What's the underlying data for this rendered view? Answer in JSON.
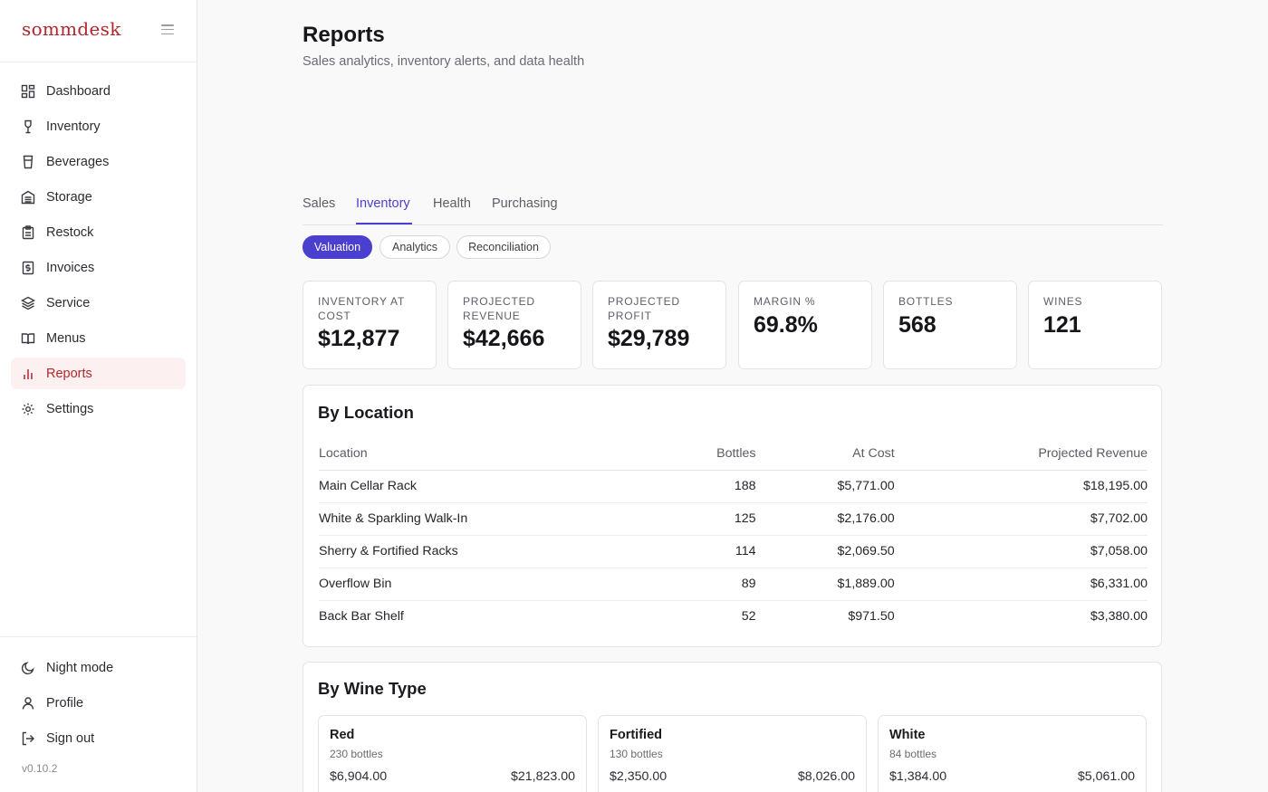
{
  "app": {
    "brand": "sommdesk",
    "version": "v0.10.2"
  },
  "sidebar": {
    "items": [
      {
        "label": "Dashboard",
        "icon": "dashboard-icon"
      },
      {
        "label": "Inventory",
        "icon": "wine-glass-icon"
      },
      {
        "label": "Beverages",
        "icon": "cup-icon"
      },
      {
        "label": "Storage",
        "icon": "storage-icon"
      },
      {
        "label": "Restock",
        "icon": "clipboard-icon"
      },
      {
        "label": "Invoices",
        "icon": "invoice-icon"
      },
      {
        "label": "Service",
        "icon": "layers-icon"
      },
      {
        "label": "Menus",
        "icon": "book-icon"
      },
      {
        "label": "Reports",
        "icon": "bar-chart-icon",
        "active": true
      },
      {
        "label": "Settings",
        "icon": "gear-icon"
      }
    ],
    "bottom": [
      {
        "label": "Night mode",
        "icon": "moon-icon"
      },
      {
        "label": "Profile",
        "icon": "user-icon"
      },
      {
        "label": "Sign out",
        "icon": "sign-out-icon"
      }
    ]
  },
  "header": {
    "title": "Reports",
    "subtitle": "Sales analytics, inventory alerts, and data health"
  },
  "tabs": [
    "Sales",
    "Inventory",
    "Health",
    "Purchasing"
  ],
  "active_tab": "Inventory",
  "subtabs": [
    "Valuation",
    "Analytics",
    "Reconciliation"
  ],
  "active_subtab": "Valuation",
  "stats": [
    {
      "label": "Inventory at cost",
      "value": "$12,877"
    },
    {
      "label": "Projected revenue",
      "value": "$42,666"
    },
    {
      "label": "Projected profit",
      "value": "$29,789"
    },
    {
      "label": "Margin %",
      "value": "69.8%"
    },
    {
      "label": "Bottles",
      "value": "568"
    },
    {
      "label": "Wines",
      "value": "121"
    }
  ],
  "by_location": {
    "title": "By Location",
    "columns": [
      "Location",
      "Bottles",
      "At Cost",
      "Projected Revenue"
    ],
    "rows": [
      [
        "Main Cellar Rack",
        "188",
        "$5,771.00",
        "$18,195.00"
      ],
      [
        "White & Sparkling Walk-In",
        "125",
        "$2,176.00",
        "$7,702.00"
      ],
      [
        "Sherry & Fortified Racks",
        "114",
        "$2,069.50",
        "$7,058.00"
      ],
      [
        "Overflow Bin",
        "89",
        "$1,889.00",
        "$6,331.00"
      ],
      [
        "Back Bar Shelf",
        "52",
        "$971.50",
        "$3,380.00"
      ]
    ]
  },
  "by_wine_type": {
    "title": "By Wine Type",
    "items": [
      {
        "name": "Red",
        "bottles": "230 bottles",
        "cost": "$6,904.00",
        "revenue": "$21,823.00"
      },
      {
        "name": "Fortified",
        "bottles": "130 bottles",
        "cost": "$2,350.00",
        "revenue": "$8,026.00"
      },
      {
        "name": "White",
        "bottles": "84 bottles",
        "cost": "$1,384.00",
        "revenue": "$5,061.00"
      }
    ]
  },
  "colors": {
    "brand": "#b3262d",
    "accent": "#4b3fcf"
  }
}
